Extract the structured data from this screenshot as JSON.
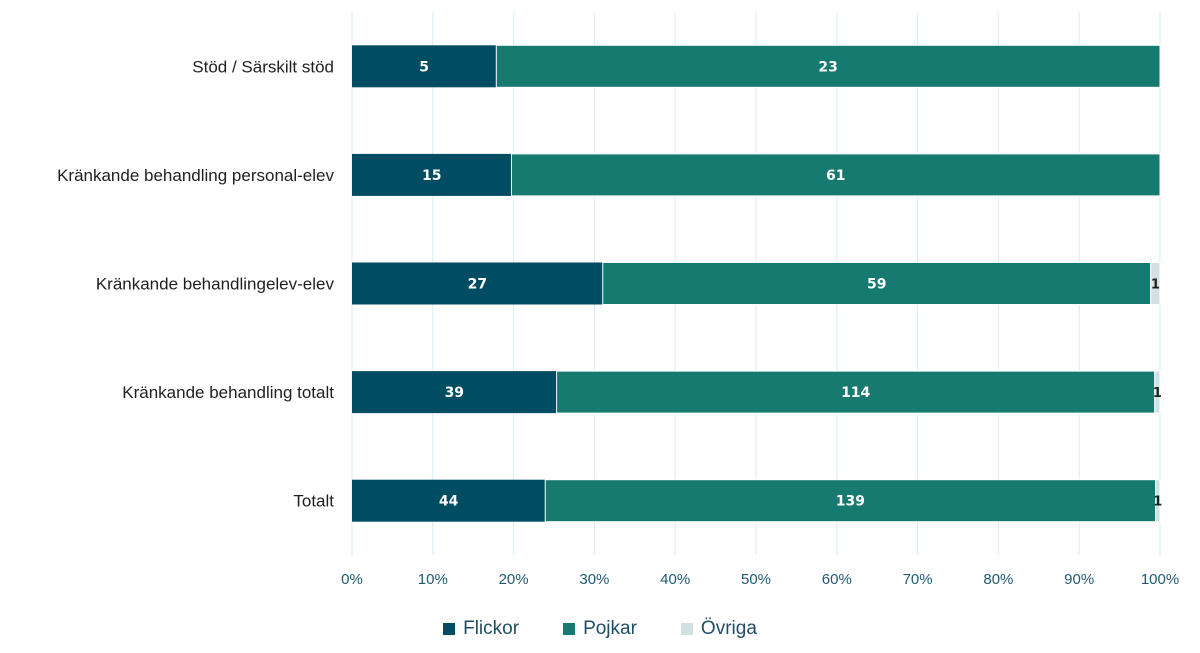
{
  "colors": {
    "flickor": "#004c63",
    "pojkar": "#167a70",
    "ovriga": "#d2e0e1",
    "grid": "#d6eef5",
    "tick_text": "#1f5a72"
  },
  "chart_data": {
    "type": "bar",
    "orientation": "horizontal",
    "stacked": "percent",
    "categories": [
      "Stöd / Särskilt stöd",
      "Kränkande behandling personal-elev",
      "Kränkande behandlingelev-elev",
      "Kränkande behandling totalt",
      "Totalt"
    ],
    "series": [
      {
        "name": "Flickor",
        "values": [
          5,
          15,
          27,
          39,
          44
        ],
        "labels": [
          "5",
          "15",
          "27",
          "39",
          "44"
        ]
      },
      {
        "name": "Pojkar",
        "values": [
          23,
          61,
          59,
          114,
          139
        ],
        "labels": [
          "23",
          "61",
          "59",
          "114",
          "139"
        ]
      },
      {
        "name": "Övriga",
        "values": [
          0,
          0,
          1,
          1,
          1
        ],
        "labels": [
          "",
          "",
          "1",
          "1",
          "1"
        ]
      }
    ],
    "xlim": [
      0,
      100
    ],
    "x_ticks": [
      "0%",
      "10%",
      "20%",
      "30%",
      "40%",
      "50%",
      "60%",
      "70%",
      "80%",
      "90%",
      "100%"
    ],
    "grid": true,
    "legend_position": "bottom"
  }
}
